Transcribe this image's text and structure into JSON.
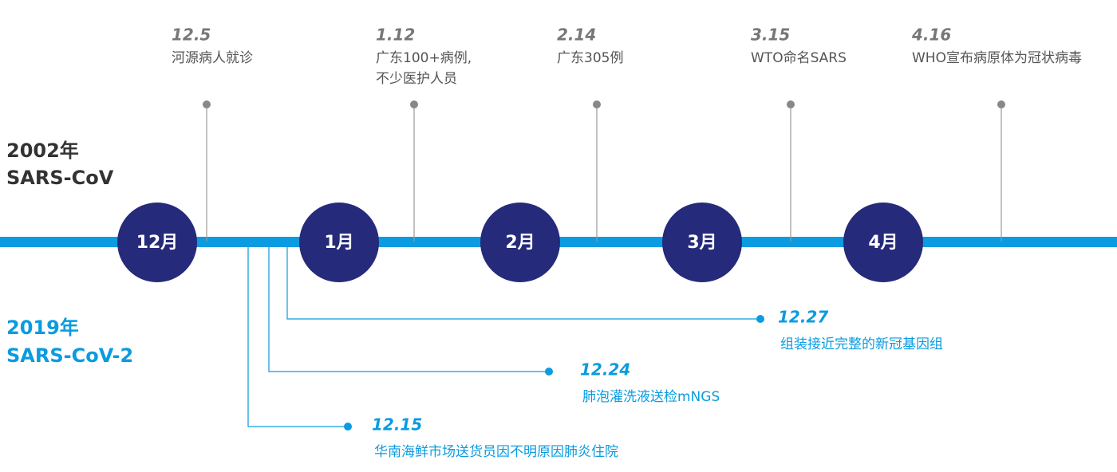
{
  "labels": {
    "old": [
      "2002年",
      "SARS-CoV"
    ],
    "new": [
      "2019年",
      "SARS-CoV-2"
    ]
  },
  "months": [
    "12月",
    "1月",
    "2月",
    "3月",
    "4月"
  ],
  "top_events": [
    {
      "date": "12.5",
      "lines": [
        "河源病人就诊"
      ]
    },
    {
      "date": "1.12",
      "lines": [
        "广东100+病例,",
        "不少医护人员"
      ]
    },
    {
      "date": "2.14",
      "lines": [
        "广东305例"
      ]
    },
    {
      "date": "3.15",
      "lines": [
        "WTO命名SARS"
      ]
    },
    {
      "date": "4.16",
      "lines": [
        "WHO宣布病原体为冠状病毒"
      ]
    }
  ],
  "bottom_events": [
    {
      "date": "12.27",
      "lines": [
        "组装接近完整的新冠基因组"
      ]
    },
    {
      "date": "12.24",
      "lines": [
        "肺泡灌洗液送检mNGS"
      ]
    },
    {
      "date": "12.15",
      "lines": [
        "华南海鲜市场送货员因不明原因肺炎住院"
      ]
    }
  ]
}
